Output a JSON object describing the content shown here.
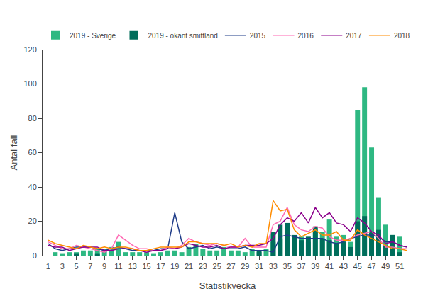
{
  "chart_data": {
    "type": "bar",
    "xlabel": "Statistikvecka",
    "ylabel": "Antal fall",
    "x": [
      1,
      2,
      3,
      4,
      5,
      6,
      7,
      8,
      9,
      10,
      11,
      12,
      13,
      14,
      15,
      16,
      17,
      18,
      19,
      20,
      21,
      22,
      23,
      24,
      25,
      26,
      27,
      28,
      29,
      30,
      31,
      32,
      33,
      34,
      35,
      36,
      37,
      38,
      39,
      40,
      41,
      42,
      43,
      44,
      45,
      46,
      47,
      48,
      49,
      50,
      51,
      52
    ],
    "series": [
      {
        "name": "2019 - Sverige",
        "type": "bar",
        "color": "#2eb882",
        "values": [
          0,
          2,
          1,
          2,
          2,
          3,
          3,
          4,
          4,
          5,
          8,
          2,
          2,
          2,
          2,
          1,
          2,
          3,
          3,
          2,
          5,
          7,
          4,
          3,
          3,
          5,
          3,
          3,
          2,
          4,
          2,
          4,
          8,
          10,
          15,
          11,
          11,
          8,
          14,
          14,
          21,
          11,
          12,
          8,
          85,
          98,
          63,
          34,
          18,
          12,
          11,
          0
        ]
      },
      {
        "name": "2019 - okänt smittland",
        "type": "bar",
        "color": "#006d5b",
        "values": [
          0,
          0,
          0,
          0,
          1,
          0,
          0,
          1,
          0,
          0,
          0,
          0,
          0,
          0,
          0,
          0,
          0,
          0,
          0,
          0,
          0,
          0,
          0,
          0,
          0,
          0,
          0,
          0,
          0,
          0,
          3,
          0,
          14,
          18,
          19,
          12,
          9,
          11,
          17,
          10,
          9,
          7,
          8,
          5,
          20,
          23,
          14,
          15,
          6,
          12,
          2,
          0
        ]
      },
      {
        "name": "2015",
        "type": "line",
        "color": "#1f3c88",
        "values": [
          7,
          4,
          3,
          4,
          5,
          5,
          5,
          4,
          3,
          4,
          5,
          4,
          3,
          3,
          3,
          3,
          4,
          4,
          25,
          8,
          4,
          5,
          6,
          4,
          5,
          4,
          4,
          4,
          5,
          3,
          3,
          3,
          2,
          11,
          12,
          11,
          10,
          10,
          10,
          10,
          8,
          7,
          8,
          10,
          11,
          12,
          12,
          11,
          8,
          8,
          6,
          5
        ]
      },
      {
        "name": "2016",
        "type": "line",
        "color": "#ff69b4",
        "values": [
          8,
          6,
          4,
          4,
          6,
          5,
          4,
          3,
          2,
          4,
          12,
          9,
          6,
          4,
          4,
          3,
          3,
          5,
          4,
          6,
          10,
          8,
          7,
          6,
          7,
          6,
          5,
          5,
          10,
          5,
          5,
          5,
          18,
          20,
          28,
          18,
          15,
          14,
          17,
          16,
          11,
          9,
          9,
          10,
          12,
          13,
          14,
          10,
          5,
          5,
          4,
          4
        ]
      },
      {
        "name": "2017",
        "type": "line",
        "color": "#8b008b",
        "values": [
          6,
          5,
          5,
          3,
          4,
          5,
          5,
          5,
          3,
          3,
          4,
          4,
          4,
          3,
          2,
          3,
          3,
          4,
          4,
          5,
          7,
          6,
          5,
          5,
          6,
          4,
          5,
          5,
          6,
          6,
          6,
          7,
          10,
          18,
          22,
          20,
          25,
          19,
          28,
          22,
          25,
          19,
          18,
          14,
          22,
          19,
          14,
          12,
          7,
          8,
          6,
          5
        ]
      },
      {
        "name": "2018",
        "type": "line",
        "color": "#ff8c00",
        "values": [
          9,
          7,
          6,
          5,
          4,
          6,
          5,
          4,
          5,
          4,
          5,
          5,
          4,
          3,
          3,
          4,
          5,
          5,
          5,
          5,
          8,
          8,
          7,
          7,
          7,
          6,
          7,
          5,
          6,
          5,
          7,
          7,
          32,
          26,
          27,
          15,
          11,
          13,
          15,
          12,
          12,
          14,
          9,
          9,
          15,
          12,
          10,
          8,
          6,
          4,
          4,
          3
        ]
      }
    ],
    "xlim": [
      0.2,
      52.8
    ],
    "xticks": [
      1,
      3,
      5,
      7,
      9,
      11,
      13,
      15,
      17,
      19,
      21,
      23,
      25,
      27,
      29,
      31,
      33,
      35,
      37,
      39,
      41,
      43,
      45,
      47,
      49,
      51
    ],
    "ylim": [
      0,
      120
    ],
    "yticks": [
      0,
      20,
      40,
      60,
      80,
      100,
      120
    ],
    "grid": false,
    "legend": "top"
  }
}
